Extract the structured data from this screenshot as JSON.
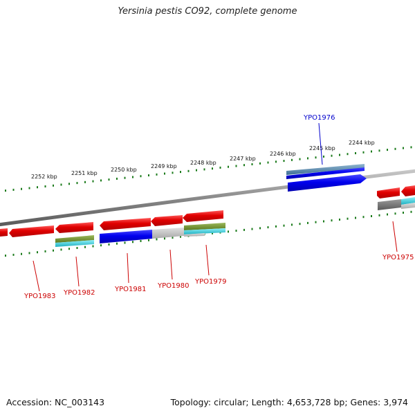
{
  "map": {
    "title": "Yersinia pestis CO92, complete genome",
    "accession": "Accession: NC_003143",
    "summary": "Topology: circular; Length: 4,653,728 bp; Genes: 3,974"
  },
  "colors": {
    "backbone": "#8a8a8a",
    "tick": "#1a7a1a",
    "red_feature": "#e00000",
    "blue_feature": "#0000ee",
    "steel_blue": "#4a7fa6",
    "olive": "#6b8c2a",
    "cyan": "#30c8d8",
    "gray_feature": "#bfbfbf",
    "dark_gray": "#707070",
    "label_red": "#cc0000",
    "label_blue": "#0000cc"
  },
  "ticks": [
    "2252 kbp",
    "2251 kbp",
    "2250 kbp",
    "2249 kbp",
    "2248 kbp",
    "2247 kbp",
    "2246 kbp",
    "2245 kbp",
    "2244 kbp"
  ],
  "genes": [
    "YPO1983",
    "YPO1982",
    "YPO1981",
    "YPO1980",
    "YPO1979",
    "YPO1976",
    "YPO1975"
  ]
}
